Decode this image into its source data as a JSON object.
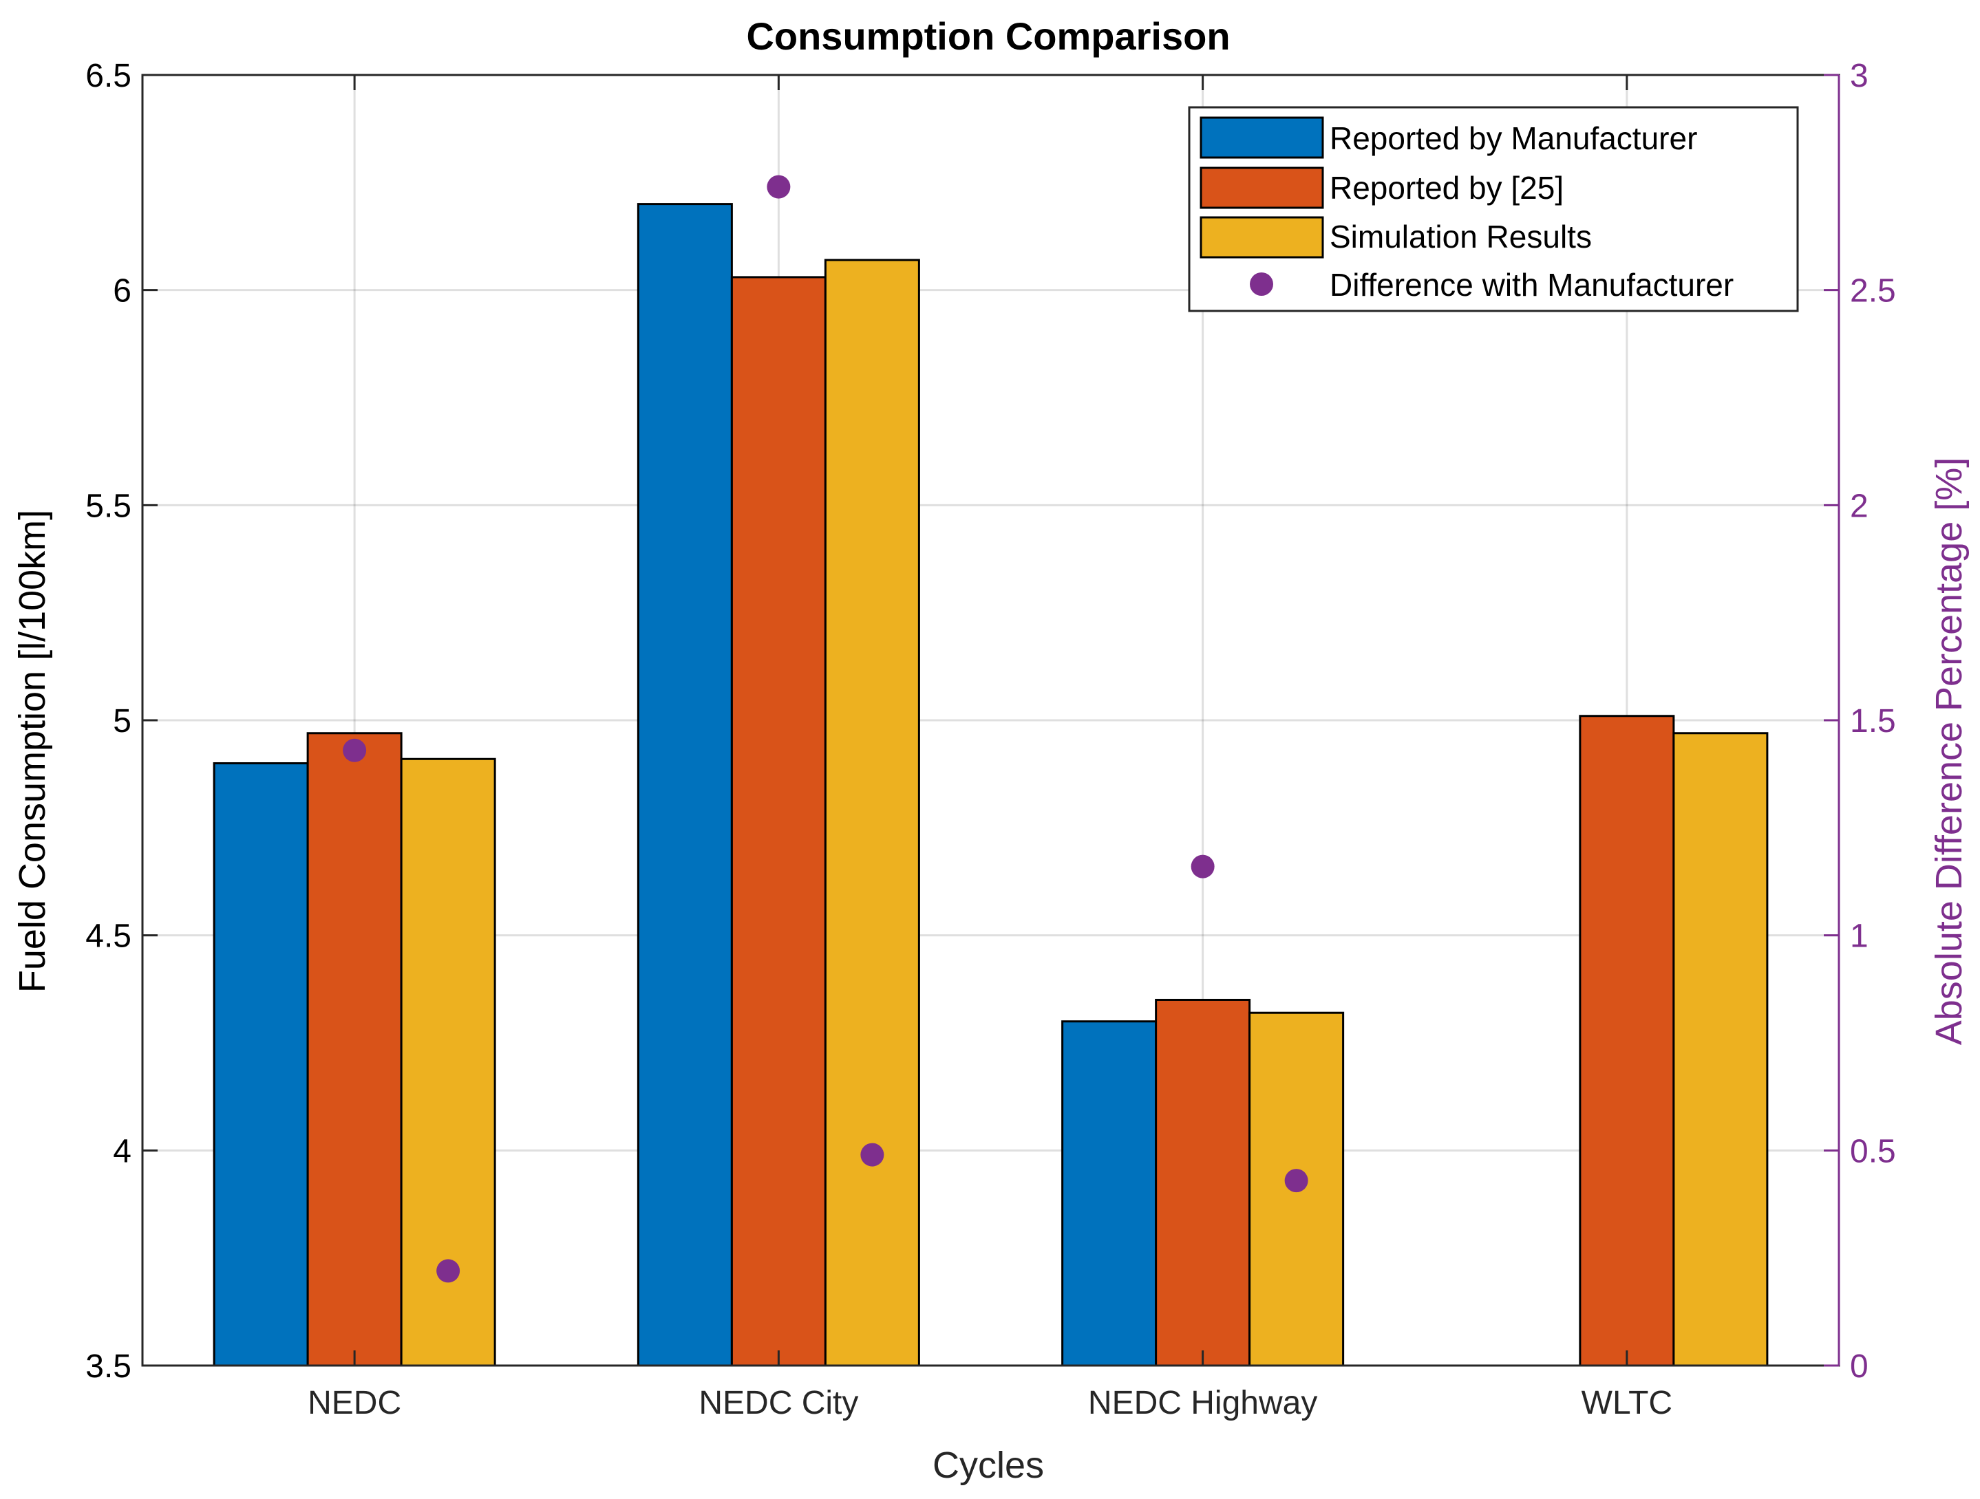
{
  "chart_data": {
    "type": "bar",
    "title": "Consumption Comparison",
    "xlabel": "Cycles",
    "ylabel": "Fueld Consumption [l/100km]",
    "y2label": "Absolute Difference Percentage [%]",
    "categories": [
      "NEDC",
      "NEDC City",
      "NEDC Highway",
      "WLTC"
    ],
    "ylim": [
      3.5,
      6.5
    ],
    "yticks": [
      "3.5",
      "4",
      "4.5",
      "5",
      "5.5",
      "6",
      "6.5"
    ],
    "y2lim": [
      0,
      3
    ],
    "y2ticks": [
      "0",
      "0.5",
      "1",
      "1.5",
      "2",
      "2.5",
      "3"
    ],
    "grid": true,
    "legend_position": "top-right",
    "series": [
      {
        "name": "Reported by Manufacturer",
        "color": "#0072BD",
        "values": [
          4.9,
          6.2,
          4.3,
          null
        ]
      },
      {
        "name": "Reported by [25]",
        "color": "#D95319",
        "values": [
          4.97,
          6.03,
          4.35,
          5.01
        ]
      },
      {
        "name": "Simulation Results",
        "color": "#EDB120",
        "values": [
          4.91,
          6.07,
          4.32,
          4.97
        ]
      }
    ],
    "scatter_series": {
      "name": "Difference with Manufacturer",
      "color": "#7E2F8E",
      "axis": "right",
      "points": [
        {
          "category": "NEDC",
          "offset": 0,
          "value": 1.43
        },
        {
          "category": "NEDC",
          "offset": 1,
          "value": 0.22
        },
        {
          "category": "NEDC City",
          "offset": 0,
          "value": 2.74
        },
        {
          "category": "NEDC City",
          "offset": 1,
          "value": 0.49
        },
        {
          "category": "NEDC Highway",
          "offset": 0,
          "value": 1.16
        },
        {
          "category": "NEDC Highway",
          "offset": 1,
          "value": 0.43
        }
      ]
    }
  }
}
